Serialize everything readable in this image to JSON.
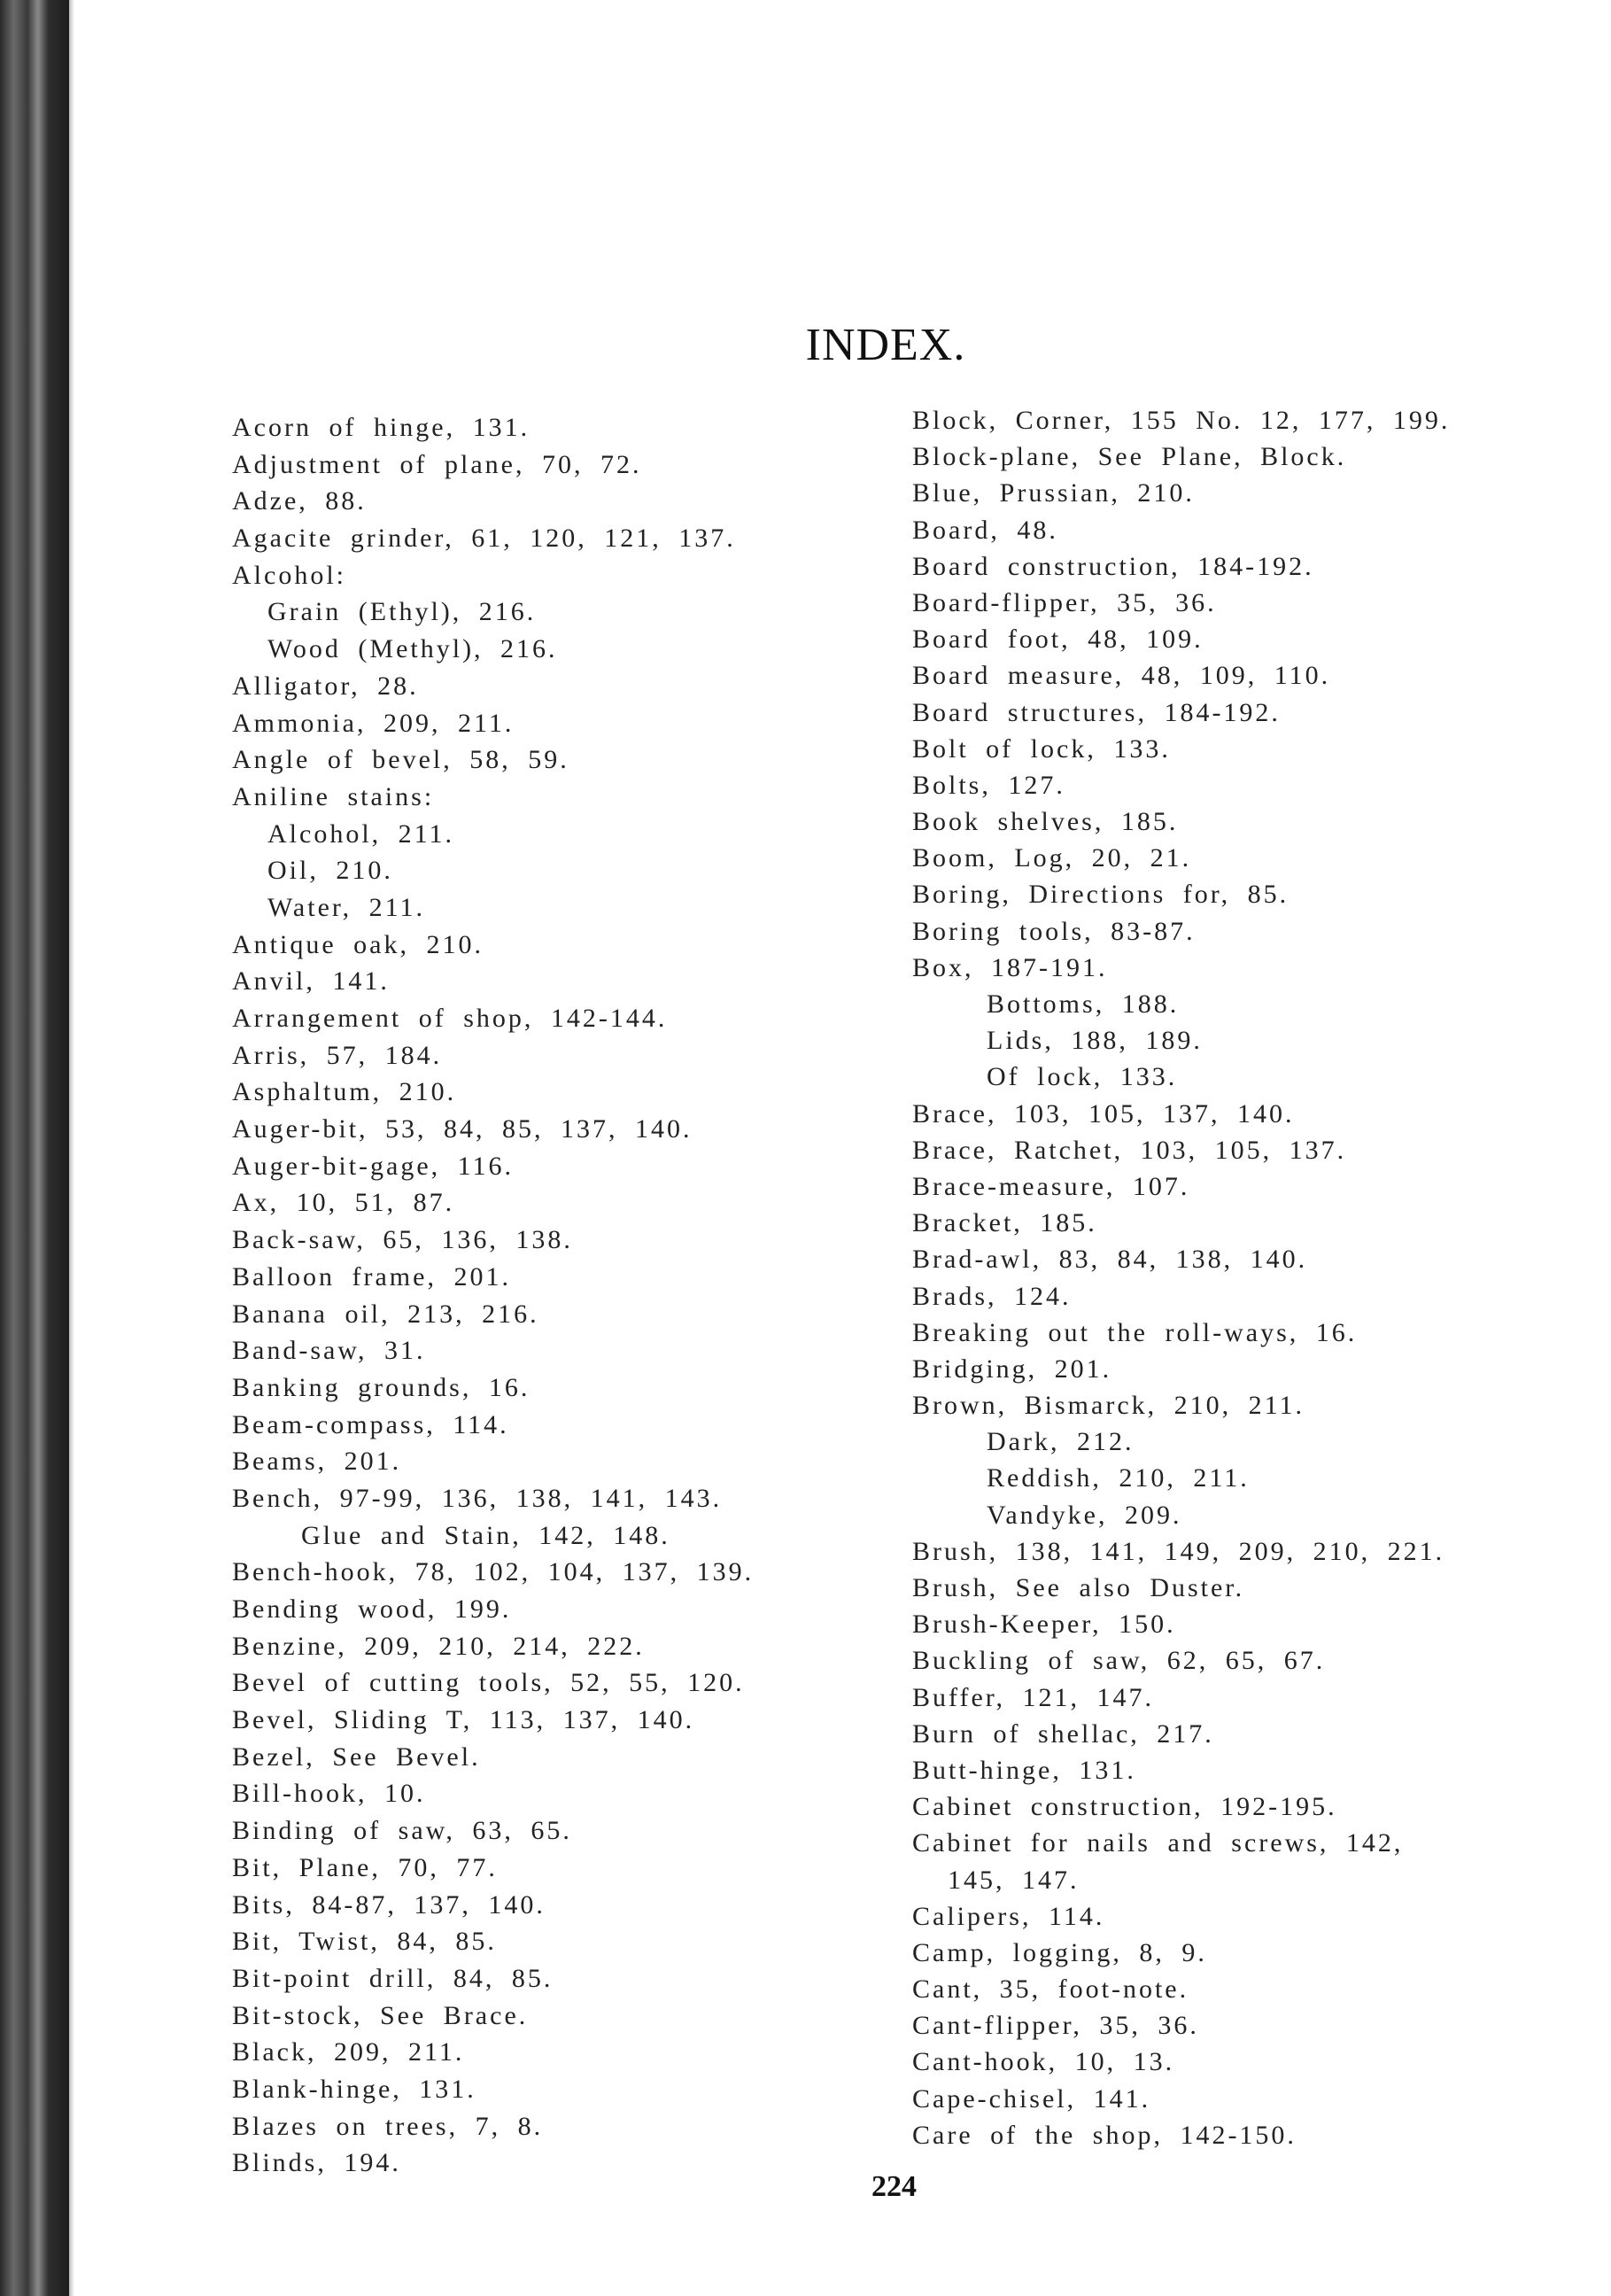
{
  "title": "INDEX.",
  "page_number": "224",
  "left_column": [
    {
      "text": "Acorn of hinge, 131.",
      "level": 0
    },
    {
      "text": "Adjustment of plane, 70, 72.",
      "level": 0
    },
    {
      "text": "Adze, 88.",
      "level": 0
    },
    {
      "text": "Agacite grinder, 61, 120, 121, 137.",
      "level": 0
    },
    {
      "text": "Alcohol:",
      "level": 0
    },
    {
      "text": "Grain (Ethyl), 216.",
      "level": 1
    },
    {
      "text": "Wood (Methyl), 216.",
      "level": 1
    },
    {
      "text": "Alligator, 28.",
      "level": 0
    },
    {
      "text": "Ammonia, 209, 211.",
      "level": 0
    },
    {
      "text": "Angle of bevel, 58, 59.",
      "level": 0
    },
    {
      "text": "Aniline stains:",
      "level": 0
    },
    {
      "text": "Alcohol, 211.",
      "level": 1
    },
    {
      "text": "Oil, 210.",
      "level": 1
    },
    {
      "text": "Water, 211.",
      "level": 1
    },
    {
      "text": "Antique oak, 210.",
      "level": 0
    },
    {
      "text": "Anvil, 141.",
      "level": 0
    },
    {
      "text": "Arrangement of shop, 142-144.",
      "level": 0
    },
    {
      "text": "Arris, 57, 184.",
      "level": 0
    },
    {
      "text": "Asphaltum, 210.",
      "level": 0
    },
    {
      "text": "Auger-bit, 53, 84, 85, 137, 140.",
      "level": 0
    },
    {
      "text": "Auger-bit-gage, 116.",
      "level": 0
    },
    {
      "text": "Ax, 10, 51, 87.",
      "level": 0
    },
    {
      "text": "Back-saw, 65, 136, 138.",
      "level": 0
    },
    {
      "text": "Balloon frame, 201.",
      "level": 0
    },
    {
      "text": "Banana oil, 213, 216.",
      "level": 0
    },
    {
      "text": "Band-saw, 31.",
      "level": 0
    },
    {
      "text": "Banking grounds, 16.",
      "level": 0
    },
    {
      "text": "Beam-compass, 114.",
      "level": 0
    },
    {
      "text": "Beams, 201.",
      "level": 0
    },
    {
      "text": "Bench, 97-99, 136, 138, 141, 143.",
      "level": 0
    },
    {
      "text": "Glue and Stain, 142, 148.",
      "level": 2
    },
    {
      "text": "Bench-hook, 78, 102, 104, 137, 139.",
      "level": 0
    },
    {
      "text": "Bending wood, 199.",
      "level": 0
    },
    {
      "text": "Benzine, 209, 210, 214, 222.",
      "level": 0
    },
    {
      "text": "Bevel of cutting tools, 52, 55, 120.",
      "level": 0
    },
    {
      "text": "Bevel, Sliding T, 113, 137, 140.",
      "level": 0
    },
    {
      "text": "Bezel, See Bevel.",
      "level": 0
    },
    {
      "text": "Bill-hook, 10.",
      "level": 0
    },
    {
      "text": "Binding of saw, 63, 65.",
      "level": 0
    },
    {
      "text": "Bit, Plane, 70, 77.",
      "level": 0
    },
    {
      "text": "Bits, 84-87, 137, 140.",
      "level": 0
    },
    {
      "text": "Bit, Twist, 84, 85.",
      "level": 0
    },
    {
      "text": "Bit-point drill, 84, 85.",
      "level": 0
    },
    {
      "text": "Bit-stock, See Brace.",
      "level": 0
    },
    {
      "text": "Black, 209, 211.",
      "level": 0
    },
    {
      "text": "Blank-hinge, 131.",
      "level": 0
    },
    {
      "text": "Blazes on trees, 7, 8.",
      "level": 0
    },
    {
      "text": "Blinds, 194.",
      "level": 0
    }
  ],
  "right_column": [
    {
      "text": "Block, Corner, 155 No. 12, 177, 199.",
      "level": 0
    },
    {
      "text": "Block-plane, See Plane, Block.",
      "level": 0
    },
    {
      "text": "Blue, Prussian, 210.",
      "level": 0
    },
    {
      "text": "Board, 48.",
      "level": 0
    },
    {
      "text": "Board construction, 184-192.",
      "level": 0
    },
    {
      "text": "Board-flipper, 35, 36.",
      "level": 0
    },
    {
      "text": "Board foot, 48, 109.",
      "level": 0
    },
    {
      "text": "Board measure, 48, 109, 110.",
      "level": 0
    },
    {
      "text": "Board structures, 184-192.",
      "level": 0
    },
    {
      "text": "Bolt of lock, 133.",
      "level": 0
    },
    {
      "text": "Bolts, 127.",
      "level": 0
    },
    {
      "text": "Book shelves, 185.",
      "level": 0
    },
    {
      "text": "Boom, Log, 20, 21.",
      "level": 0
    },
    {
      "text": "Boring, Directions for, 85.",
      "level": 0
    },
    {
      "text": "Boring tools, 83-87.",
      "level": 0
    },
    {
      "text": "Box, 187-191.",
      "level": 0
    },
    {
      "text": "Bottoms, 188.",
      "level": 2
    },
    {
      "text": "Lids, 188, 189.",
      "level": 2
    },
    {
      "text": "Of lock, 133.",
      "level": 2
    },
    {
      "text": "Brace, 103, 105, 137, 140.",
      "level": 0
    },
    {
      "text": "Brace, Ratchet, 103, 105, 137.",
      "level": 0
    },
    {
      "text": "Brace-measure, 107.",
      "level": 0
    },
    {
      "text": "Bracket, 185.",
      "level": 0
    },
    {
      "text": "Brad-awl, 83, 84, 138, 140.",
      "level": 0
    },
    {
      "text": "Brads, 124.",
      "level": 0
    },
    {
      "text": "Breaking out the roll-ways, 16.",
      "level": 0
    },
    {
      "text": "Bridging, 201.",
      "level": 0
    },
    {
      "text": "Brown, Bismarck, 210, 211.",
      "level": 0
    },
    {
      "text": "Dark, 212.",
      "level": 2
    },
    {
      "text": "Reddish, 210, 211.",
      "level": 2
    },
    {
      "text": "Vandyke, 209.",
      "level": 2
    },
    {
      "text": "Brush, 138, 141, 149, 209, 210, 221.",
      "level": 0
    },
    {
      "text": "Brush, See also Duster.",
      "level": 0
    },
    {
      "text": "Brush-Keeper, 150.",
      "level": 0
    },
    {
      "text": "Buckling of saw, 62, 65, 67.",
      "level": 0
    },
    {
      "text": "Buffer, 121, 147.",
      "level": 0
    },
    {
      "text": "Burn of shellac, 217.",
      "level": 0
    },
    {
      "text": "Butt-hinge, 131.",
      "level": 0
    },
    {
      "text": "Cabinet construction, 192-195.",
      "level": 0
    },
    {
      "text": "Cabinet for nails and screws, 142,",
      "level": 0
    },
    {
      "text": "145, 147.",
      "level": 1
    },
    {
      "text": "Calipers, 114.",
      "level": 0
    },
    {
      "text": "Camp, logging, 8, 9.",
      "level": 0
    },
    {
      "text": "Cant, 35, foot-note.",
      "level": 0
    },
    {
      "text": "Cant-flipper, 35, 36.",
      "level": 0
    },
    {
      "text": "Cant-hook, 10, 13.",
      "level": 0
    },
    {
      "text": "Cape-chisel, 141.",
      "level": 0
    },
    {
      "text": "Care of the shop, 142-150.",
      "level": 0
    }
  ]
}
